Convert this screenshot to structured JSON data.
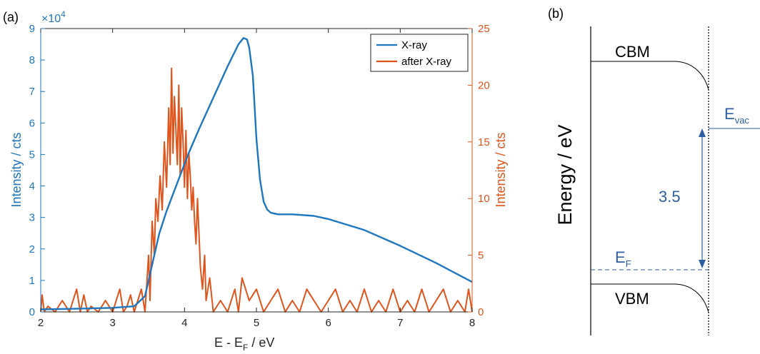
{
  "panel_a": {
    "panel_label": "(a)",
    "x_label_main": "E - E",
    "x_label_sub": "F",
    "x_label_tail": " / eV",
    "y_left_label": "Intensity / cts",
    "y_right_label": "Intensity / cts",
    "exponent_prefix": "×10",
    "exponent_power": "4",
    "x_ticks": [
      "2",
      "3",
      "4",
      "5",
      "6",
      "7",
      "8"
    ],
    "y_left_ticks": [
      "0",
      "1",
      "2",
      "3",
      "4",
      "5",
      "6",
      "7",
      "8",
      "9"
    ],
    "y_right_ticks": [
      "0",
      "5",
      "10",
      "15",
      "20",
      "25"
    ],
    "legend": [
      "X-ray",
      "after X-ray"
    ],
    "colors": {
      "xray": "#1f77bf",
      "after": "#e0541d",
      "axis_left": "#1f77bf",
      "axis_right": "#e0541d",
      "box": "#262626"
    }
  },
  "panel_b": {
    "panel_label": "(b)",
    "y_label": "Energy / eV",
    "cbm": "CBM",
    "vbm": "VBM",
    "evac_main": "E",
    "evac_sub": "vac",
    "ef_main": "E",
    "ef_sub": "F",
    "gap_value": "3.5",
    "colors": {
      "annot": "#2e5fa3",
      "line": "#000000"
    }
  },
  "chart_data": [
    {
      "type": "line",
      "title": "",
      "xlabel": "E - E_F / eV",
      "ylabel": "Intensity / cts",
      "y2label": "Intensity / cts",
      "xlim": [
        2,
        8
      ],
      "ylim": [
        0,
        90000
      ],
      "y2lim": [
        0,
        25
      ],
      "grid": false,
      "legend_position": "top-right",
      "series": [
        {
          "name": "X-ray",
          "axis": "left",
          "x": [
            2.0,
            2.5,
            3.0,
            3.3,
            3.45,
            3.55,
            3.65,
            3.75,
            3.85,
            3.95,
            4.05,
            4.2,
            4.4,
            4.6,
            4.75,
            4.82,
            4.87,
            4.9,
            4.95,
            5.0,
            5.05,
            5.1,
            5.15,
            5.2,
            5.3,
            5.5,
            5.8,
            6.0,
            6.5,
            7.0,
            7.5,
            8.0
          ],
          "values": [
            800,
            1000,
            1300,
            1800,
            5000,
            15000,
            25000,
            32000,
            38000,
            44000,
            50000,
            58000,
            68000,
            78000,
            85000,
            87000,
            86500,
            84000,
            75000,
            55000,
            42000,
            35000,
            32500,
            31500,
            31000,
            31000,
            30500,
            29500,
            26000,
            21000,
            15500,
            9500
          ]
        },
        {
          "name": "after X-ray",
          "axis": "right",
          "x": [
            2.0,
            2.02,
            2.05,
            2.1,
            2.2,
            2.3,
            2.4,
            2.5,
            2.55,
            2.6,
            2.65,
            2.7,
            2.8,
            2.9,
            3.0,
            3.1,
            3.15,
            3.2,
            3.25,
            3.3,
            3.35,
            3.4,
            3.45,
            3.5,
            3.52,
            3.55,
            3.58,
            3.6,
            3.63,
            3.66,
            3.69,
            3.72,
            3.75,
            3.78,
            3.8,
            3.82,
            3.84,
            3.86,
            3.88,
            3.9,
            3.92,
            3.94,
            3.96,
            3.98,
            4.0,
            4.02,
            4.04,
            4.06,
            4.08,
            4.1,
            4.12,
            4.14,
            4.16,
            4.18,
            4.2,
            4.22,
            4.25,
            4.28,
            4.3,
            4.35,
            4.4,
            4.5,
            4.6,
            4.7,
            4.75,
            4.8,
            4.9,
            5.0,
            5.1,
            5.2,
            5.3,
            5.4,
            5.5,
            5.6,
            5.7,
            5.8,
            5.9,
            6.0,
            6.1,
            6.2,
            6.3,
            6.4,
            6.5,
            6.6,
            6.7,
            6.8,
            6.9,
            7.0,
            7.1,
            7.2,
            7.3,
            7.4,
            7.5,
            7.6,
            7.7,
            7.8,
            7.9,
            7.95,
            8.0
          ],
          "values": [
            0,
            1.5,
            0,
            0.5,
            0,
            1,
            0,
            2,
            0,
            1.5,
            0,
            0.5,
            0,
            1,
            0,
            2,
            0,
            0.5,
            1.5,
            0,
            1,
            2,
            0,
            5,
            1,
            8,
            5,
            10,
            8,
            12,
            9,
            15,
            11,
            18,
            13,
            21.5,
            14,
            19,
            16,
            13,
            20,
            12,
            18,
            15,
            11,
            16,
            10,
            14,
            12,
            9,
            11,
            8,
            6,
            10,
            7,
            4,
            2,
            5,
            1,
            3,
            0,
            1,
            0,
            2,
            0,
            3,
            1,
            2,
            0,
            1,
            2,
            0,
            1,
            0,
            2,
            1,
            0,
            1,
            2,
            0,
            1,
            0,
            2,
            0,
            1,
            0,
            2,
            0,
            1,
            0,
            2,
            0,
            1,
            2,
            0,
            1,
            0,
            2,
            0
          ]
        }
      ]
    },
    {
      "type": "diagram",
      "title": "",
      "ylabel": "Energy / eV",
      "labels": [
        "CBM",
        "VBM",
        "E_vac",
        "E_F"
      ],
      "gap_annotation": 3.5
    }
  ]
}
